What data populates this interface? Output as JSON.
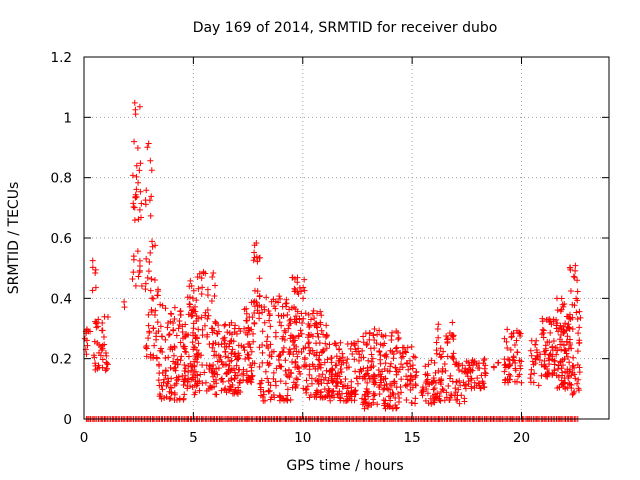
{
  "chart_data": {
    "type": "scatter",
    "title": "Day 169 of 2014, SRMTID for receiver dubo",
    "xlabel": "GPS time / hours",
    "ylabel": "SRMTID / TECUs",
    "xlim": [
      0,
      24
    ],
    "ylim": [
      0,
      1.2
    ],
    "xticks": [
      0,
      5,
      10,
      15,
      20
    ],
    "yticks": [
      0,
      0.2,
      0.4,
      0.6,
      0.8,
      1,
      1.2
    ],
    "ytick_labels": [
      "0",
      "0.2",
      "0.4",
      "0.6",
      "0.8",
      "1",
      "1.2"
    ],
    "grid": true,
    "marker": "+",
    "color": "#ff0000",
    "zero_line_points_note": "dense row of points at 0 from ~0.1 to ~22.6 hours",
    "zero_range": [
      0.1,
      22.6
    ],
    "clusters": [
      {
        "x": [
          0.0,
          0.35
        ],
        "y": [
          0.2,
          0.31
        ],
        "n": 12
      },
      {
        "x": [
          0.35,
          0.55
        ],
        "y": [
          0.42,
          0.55
        ],
        "n": 6
      },
      {
        "x": [
          0.45,
          1.1
        ],
        "y": [
          0.16,
          0.34
        ],
        "n": 40
      },
      {
        "x": [
          1.8,
          1.9
        ],
        "y": [
          0.37,
          0.39
        ],
        "n": 2
      },
      {
        "x": [
          2.2,
          2.65
        ],
        "y": [
          0.65,
          0.92
        ],
        "n": 22
      },
      {
        "x": [
          2.25,
          2.75
        ],
        "y": [
          1.01,
          1.05
        ],
        "n": 4
      },
      {
        "x": [
          2.2,
          2.7
        ],
        "y": [
          0.43,
          0.58
        ],
        "n": 12
      },
      {
        "x": [
          2.8,
          3.1
        ],
        "y": [
          0.66,
          0.93
        ],
        "n": 10
      },
      {
        "x": [
          2.8,
          3.4
        ],
        "y": [
          0.2,
          0.59
        ],
        "n": 45
      },
      {
        "x": [
          3.4,
          4.6
        ],
        "y": [
          0.06,
          0.38
        ],
        "n": 110
      },
      {
        "x": [
          4.6,
          5.0
        ],
        "y": [
          0.1,
          0.46
        ],
        "n": 50
      },
      {
        "x": [
          5.0,
          6.0
        ],
        "y": [
          0.08,
          0.49
        ],
        "n": 110
      },
      {
        "x": [
          6.0,
          7.3
        ],
        "y": [
          0.08,
          0.32
        ],
        "n": 120
      },
      {
        "x": [
          7.3,
          7.8
        ],
        "y": [
          0.12,
          0.4
        ],
        "n": 55
      },
      {
        "x": [
          7.75,
          8.05
        ],
        "y": [
          0.35,
          0.59
        ],
        "n": 20
      },
      {
        "x": [
          8.0,
          9.5
        ],
        "y": [
          0.06,
          0.42
        ],
        "n": 130
      },
      {
        "x": [
          9.5,
          10.1
        ],
        "y": [
          0.1,
          0.47
        ],
        "n": 70
      },
      {
        "x": [
          10.1,
          11.2
        ],
        "y": [
          0.07,
          0.36
        ],
        "n": 110
      },
      {
        "x": [
          11.2,
          12.6
        ],
        "y": [
          0.06,
          0.26
        ],
        "n": 120
      },
      {
        "x": [
          12.6,
          14.4
        ],
        "y": [
          0.03,
          0.3
        ],
        "n": 170
      },
      {
        "x": [
          14.4,
          15.2
        ],
        "y": [
          0.05,
          0.24
        ],
        "n": 50
      },
      {
        "x": [
          15.4,
          16.1
        ],
        "y": [
          0.05,
          0.2
        ],
        "n": 40
      },
      {
        "x": [
          16.1,
          16.9
        ],
        "y": [
          0.06,
          0.32
        ],
        "n": 60
      },
      {
        "x": [
          16.9,
          17.4
        ],
        "y": [
          0.05,
          0.19
        ],
        "n": 25
      },
      {
        "x": [
          17.4,
          18.4
        ],
        "y": [
          0.1,
          0.2
        ],
        "n": 55
      },
      {
        "x": [
          18.6,
          19.1
        ],
        "y": [
          0.17,
          0.2
        ],
        "n": 4
      },
      {
        "x": [
          19.2,
          20.0
        ],
        "y": [
          0.12,
          0.3
        ],
        "n": 55
      },
      {
        "x": [
          20.4,
          20.9
        ],
        "y": [
          0.11,
          0.26
        ],
        "n": 25
      },
      {
        "x": [
          20.9,
          21.6
        ],
        "y": [
          0.14,
          0.34
        ],
        "n": 60
      },
      {
        "x": [
          21.6,
          22.2
        ],
        "y": [
          0.1,
          0.4
        ],
        "n": 80
      },
      {
        "x": [
          22.2,
          22.7
        ],
        "y": [
          0.08,
          0.51
        ],
        "n": 55
      }
    ]
  }
}
